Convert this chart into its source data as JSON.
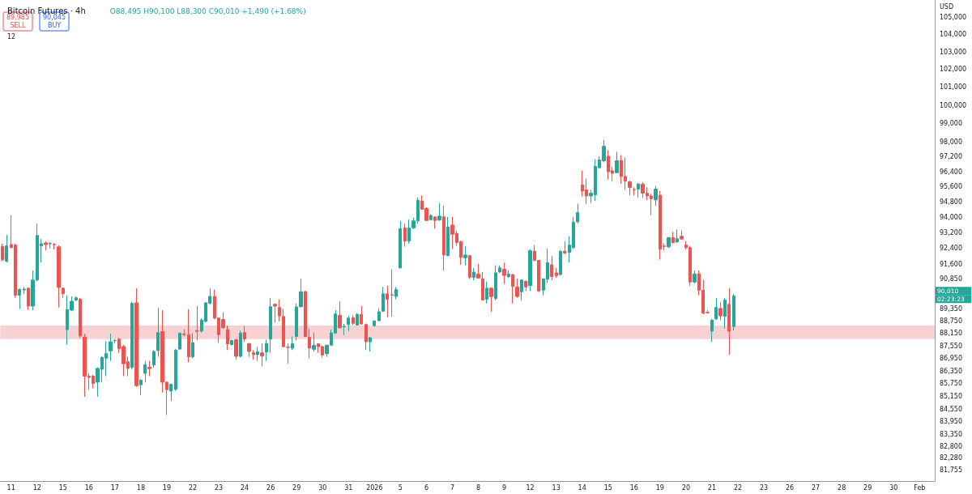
{
  "chart_data": {
    "type": "candlestick",
    "title": "Bitcoin Futures · 4h",
    "subtitle": "O88,495 H90,100 L88,300 C90,010 +1,490 (+1.68%)",
    "ylabel": "USD",
    "annotations": [
      "89,985",
      "SELL",
      "90,045",
      "BUY",
      "12",
      "90,010",
      "02:23:23"
    ],
    "log": true,
    "ylim": [
      81250,
      106000
    ],
    "yticks": [
      {
        "value": 81755,
        "label": "81,755"
      },
      {
        "value": 82280,
        "label": "82,280"
      },
      {
        "value": 82800,
        "label": "82,800"
      },
      {
        "value": 83350,
        "label": "83,350"
      },
      {
        "value": 83950,
        "label": "83,950"
      },
      {
        "value": 84550,
        "label": "84,550"
      },
      {
        "value": 85150,
        "label": "85,150"
      },
      {
        "value": 85750,
        "label": "85,750"
      },
      {
        "value": 86350,
        "label": "86,350"
      },
      {
        "value": 86950,
        "label": "86,950"
      },
      {
        "value": 87550,
        "label": "87,550"
      },
      {
        "value": 88150,
        "label": "88,150"
      },
      {
        "value": 88750,
        "label": "88,750"
      },
      {
        "value": 89350,
        "label": "89,350"
      },
      {
        "value": 90850,
        "label": "90,850"
      },
      {
        "value": 91600,
        "label": "91,600"
      },
      {
        "value": 92400,
        "label": "92,400"
      },
      {
        "value": 93200,
        "label": "93,200"
      },
      {
        "value": 94000,
        "label": "94,000"
      },
      {
        "value": 94800,
        "label": "94,800"
      },
      {
        "value": 95600,
        "label": "95,600"
      },
      {
        "value": 96400,
        "label": "96,400"
      },
      {
        "value": 97200,
        "label": "97,200"
      },
      {
        "value": 98000,
        "label": "98,000"
      },
      {
        "value": 99000,
        "label": "99,000"
      },
      {
        "value": 100000,
        "label": "100,000"
      },
      {
        "value": 101000,
        "label": "101,000"
      },
      {
        "value": 102000,
        "label": "102,000"
      },
      {
        "value": 103000,
        "label": "103,000"
      },
      {
        "value": 104000,
        "label": "104,000"
      },
      {
        "value": 105000,
        "label": "105,000"
      }
    ],
    "bands": [
      {
        "axis": "y",
        "from": 87880,
        "to": 88540,
        "color": "#f4b4b6"
      }
    ],
    "categories": [
      null,
      null,
      "11",
      null,
      null,
      null,
      null,
      null,
      "12",
      null,
      null,
      null,
      null,
      null,
      "15",
      null,
      null,
      null,
      null,
      null,
      "16",
      null,
      null,
      null,
      null,
      null,
      "17",
      null,
      null,
      null,
      null,
      null,
      "18",
      null,
      null,
      null,
      null,
      null,
      "19",
      null,
      null,
      null,
      null,
      null,
      "22",
      null,
      null,
      null,
      null,
      null,
      "23",
      null,
      null,
      null,
      null,
      null,
      "24",
      null,
      null,
      null,
      null,
      null,
      "26",
      null,
      null,
      null,
      null,
      null,
      "29",
      null,
      null,
      null,
      null,
      null,
      "30",
      null,
      null,
      null,
      null,
      null,
      "31",
      null,
      null,
      null,
      null,
      null,
      "2026",
      null,
      null,
      null,
      null,
      null,
      "5",
      null,
      null,
      null,
      null,
      null,
      "6",
      null,
      null,
      null,
      null,
      null,
      "7",
      null,
      null,
      null,
      null,
      null,
      "8",
      null,
      null,
      null,
      null,
      null,
      "9",
      null,
      null,
      null,
      null,
      null,
      "12",
      null,
      null,
      null,
      null,
      null,
      "13",
      null,
      null,
      null,
      null,
      null,
      "14",
      null,
      null,
      null,
      null,
      null,
      "15",
      null,
      null,
      null,
      null,
      null,
      "16",
      null,
      null,
      null,
      null,
      null,
      "19",
      null,
      null,
      null,
      null,
      null,
      "20",
      null,
      null,
      null,
      null,
      null,
      "21",
      null,
      null,
      null,
      null,
      null,
      "22",
      null,
      null,
      null,
      null,
      null,
      "23",
      null,
      null,
      null,
      null,
      null,
      "26",
      null,
      null,
      null,
      null,
      null,
      "27",
      null,
      null,
      null,
      null,
      null,
      "28",
      null,
      null,
      null,
      null,
      null,
      "29",
      null,
      null,
      null,
      null,
      null,
      "30",
      null,
      null,
      null,
      null,
      null,
      "Feb",
      null,
      null,
      null
    ],
    "ohlc": [
      [
        92500,
        92640,
        91750,
        91820
      ],
      [
        91750,
        93100,
        91680,
        92530
      ],
      [
        92600,
        94100,
        92400,
        92440
      ],
      [
        92570,
        92640,
        89910,
        90040
      ],
      [
        90040,
        90390,
        89360,
        90320
      ],
      [
        90300,
        90450,
        90100,
        90340
      ],
      [
        90390,
        90430,
        89300,
        89500
      ],
      [
        89500,
        91270,
        89300,
        90800
      ],
      [
        90800,
        93670,
        90730,
        93060
      ],
      [
        92530,
        92880,
        91680,
        92640
      ],
      [
        92680,
        92760,
        92300,
        92600
      ],
      [
        92640,
        92720,
        92400,
        92650
      ],
      [
        92600,
        92680,
        92350,
        92590
      ],
      [
        92480,
        92560,
        89430,
        90430
      ],
      [
        90390,
        90430,
        89910,
        90110
      ],
      [
        88340,
        90040,
        87615,
        89330
      ],
      [
        89300,
        89980,
        89250,
        89740
      ],
      [
        89800,
        89980,
        89750,
        89910
      ],
      [
        89840,
        89910,
        87945,
        88040
      ],
      [
        87980,
        88140,
        85125,
        86100
      ],
      [
        86100,
        86235,
        85455,
        86040
      ],
      [
        86100,
        86150,
        85520,
        85750
      ],
      [
        85815,
        86520,
        85125,
        86470
      ],
      [
        86430,
        87050,
        85815,
        87000
      ],
      [
        86960,
        87775,
        86100,
        87180
      ],
      [
        87310,
        88150,
        86830,
        87750
      ],
      [
        87800,
        87880,
        87680,
        87815
      ],
      [
        87880,
        87945,
        87220,
        87420
      ],
      [
        87520,
        87600,
        86100,
        86690
      ],
      [
        86790,
        87025,
        86100,
        86470
      ],
      [
        86525,
        89700,
        86430,
        89630
      ],
      [
        89660,
        90390,
        85590,
        85650
      ],
      [
        85690,
        85950,
        85190,
        85910
      ],
      [
        86235,
        86830,
        85800,
        86650
      ],
      [
        86525,
        86830,
        86100,
        86460
      ],
      [
        86630,
        87350,
        86500,
        87285
      ],
      [
        87325,
        89430,
        87025,
        88200
      ],
      [
        88250,
        89300,
        85320,
        85815
      ],
      [
        85815,
        85850,
        84270,
        85455
      ],
      [
        85390,
        85750,
        84925,
        85710
      ],
      [
        85480,
        87400,
        85400,
        87350
      ],
      [
        87400,
        88200,
        87350,
        88170
      ],
      [
        88140,
        88360,
        88020,
        88100
      ],
      [
        88100,
        89340,
        86760,
        87025
      ],
      [
        87025,
        88170,
        86950,
        87710
      ],
      [
        88300,
        89500,
        87815,
        88260
      ],
      [
        88270,
        88900,
        88200,
        88810
      ],
      [
        88750,
        89700,
        88700,
        89660
      ],
      [
        89630,
        90390,
        89600,
        89980
      ],
      [
        89980,
        90320,
        88850,
        88910
      ],
      [
        88910,
        88950,
        87710,
        88100
      ],
      [
        88840,
        89200,
        88400,
        88430
      ],
      [
        88340,
        88540,
        87350,
        87655
      ],
      [
        87615,
        87850,
        87580,
        87815
      ],
      [
        87855,
        87900,
        86890,
        87050
      ],
      [
        87050,
        88300,
        86990,
        88170
      ],
      [
        88200,
        88540,
        87750,
        87880
      ],
      [
        87655,
        87700,
        87025,
        87285
      ],
      [
        87220,
        87350,
        86890,
        87130
      ],
      [
        87130,
        87500,
        86830,
        87260
      ],
      [
        87220,
        87680,
        86560,
        87060
      ],
      [
        87260,
        87855,
        86830,
        87655
      ],
      [
        87880,
        89910,
        87220,
        89470
      ],
      [
        89590,
        89630,
        88680,
        89500
      ],
      [
        89430,
        89840,
        88750,
        89020
      ],
      [
        88990,
        89360,
        87480,
        87520
      ],
      [
        87500,
        87680,
        86690,
        87480
      ],
      [
        87440,
        88010,
        87350,
        87655
      ],
      [
        88010,
        89630,
        87815,
        89460
      ],
      [
        89470,
        90860,
        89430,
        90210
      ],
      [
        90220,
        90260,
        87980,
        88010
      ],
      [
        87970,
        88390,
        86960,
        87445
      ],
      [
        87390,
        88210,
        87285,
        87575
      ],
      [
        87655,
        87680,
        87220,
        87520
      ],
      [
        87520,
        87560,
        86990,
        87115
      ],
      [
        87180,
        87600,
        87025,
        87590
      ],
      [
        87590,
        88340,
        87560,
        88180
      ],
      [
        88180,
        89300,
        88150,
        89110
      ],
      [
        89050,
        89740,
        88410,
        88430
      ],
      [
        88480,
        88620,
        88080,
        88500
      ],
      [
        88590,
        89020,
        88270,
        88910
      ],
      [
        88930,
        89050,
        88570,
        88650
      ],
      [
        88570,
        89150,
        88540,
        89090
      ],
      [
        89090,
        89500,
        88590,
        88620
      ],
      [
        88590,
        88640,
        87350,
        87750
      ],
      [
        87750,
        87990,
        87285,
        87945
      ],
      [
        88540,
        88800,
        88480,
        88770
      ],
      [
        88780,
        89390,
        88750,
        89220
      ],
      [
        89250,
        90450,
        89220,
        90110
      ],
      [
        90110,
        90520,
        88950,
        89840
      ],
      [
        90060,
        91340,
        88980,
        90040
      ],
      [
        89980,
        90450,
        89840,
        90320
      ],
      [
        91410,
        93815,
        91380,
        93415
      ],
      [
        93460,
        93670,
        92490,
        92770
      ],
      [
        92770,
        93880,
        92640,
        93460
      ],
      [
        93460,
        93990,
        93390,
        93815
      ],
      [
        93815,
        95040,
        93670,
        94890
      ],
      [
        94850,
        95140,
        94390,
        94420
      ],
      [
        94460,
        94530,
        93815,
        93840
      ],
      [
        93880,
        94170,
        93840,
        94100
      ],
      [
        94020,
        94060,
        93410,
        93840
      ],
      [
        93860,
        94750,
        93815,
        94060
      ],
      [
        94030,
        94600,
        91280,
        92070
      ],
      [
        92030,
        94030,
        92000,
        93500
      ],
      [
        93600,
        94030,
        92370,
        93130
      ],
      [
        93170,
        93300,
        92530,
        92700
      ],
      [
        92750,
        92800,
        91570,
        91940
      ],
      [
        91920,
        92500,
        91540,
        92060
      ],
      [
        92030,
        92060,
        90840,
        90930
      ],
      [
        90930,
        91410,
        90790,
        91200
      ],
      [
        91100,
        91610,
        90870,
        90900
      ],
      [
        90860,
        91200,
        89780,
        89800
      ],
      [
        89840,
        90730,
        89630,
        90390
      ],
      [
        90390,
        90430,
        89220,
        89970
      ],
      [
        89880,
        91540,
        89780,
        91160
      ],
      [
        91200,
        91540,
        91160,
        91410
      ],
      [
        91340,
        91680,
        90620,
        91030
      ],
      [
        90970,
        91290,
        90920,
        91110
      ],
      [
        91070,
        91100,
        89630,
        90480
      ],
      [
        90450,
        90860,
        89910,
        89980
      ],
      [
        90210,
        90830,
        89770,
        90800
      ],
      [
        90730,
        90780,
        90250,
        90450
      ],
      [
        90520,
        92350,
        90250,
        92280
      ],
      [
        92260,
        92570,
        91750,
        91790
      ],
      [
        91790,
        91800,
        90200,
        90250
      ],
      [
        90290,
        90870,
        90040,
        90860
      ],
      [
        90840,
        92400,
        90650,
        91680
      ],
      [
        91570,
        92020,
        90790,
        90970
      ],
      [
        91160,
        91410,
        90910,
        91020
      ],
      [
        91080,
        92320,
        91020,
        92250
      ],
      [
        92260,
        92770,
        92100,
        92170
      ],
      [
        92200,
        93030,
        91680,
        92570
      ],
      [
        92440,
        94030,
        92370,
        93750
      ],
      [
        93770,
        94720,
        93670,
        94250
      ],
      [
        95700,
        96470,
        95080,
        95370
      ],
      [
        95440,
        96030,
        94680,
        95120
      ],
      [
        95120,
        95440,
        94750,
        95260
      ],
      [
        95180,
        97065,
        94855,
        96685
      ],
      [
        96615,
        97230,
        96565,
        97035
      ],
      [
        96985,
        98100,
        96900,
        97760
      ],
      [
        97230,
        97560,
        95980,
        96400
      ],
      [
        96450,
        96650,
        95900,
        96320
      ],
      [
        96350,
        97470,
        96320,
        96985
      ],
      [
        97000,
        97290,
        95760,
        96150
      ],
      [
        96150,
        97150,
        95440,
        95900
      ],
      [
        95860,
        95930,
        95150,
        95570
      ],
      [
        95450,
        95570,
        95150,
        95440
      ],
      [
        95480,
        95800,
        95020,
        95750
      ],
      [
        95750,
        95840,
        95020,
        95260
      ],
      [
        95260,
        95570,
        94900,
        95120
      ],
      [
        95120,
        95230,
        94120,
        94970
      ],
      [
        94910,
        95640,
        94600,
        95480
      ],
      [
        95160,
        95390,
        91830,
        92360
      ],
      [
        92520,
        92650,
        92300,
        92500
      ],
      [
        92480,
        92990,
        92400,
        92950
      ],
      [
        92950,
        93240,
        92650,
        92700
      ],
      [
        92730,
        93380,
        92680,
        92900
      ],
      [
        93020,
        93320,
        92860,
        92880
      ],
      [
        92570,
        92770,
        92350,
        92440
      ],
      [
        92440,
        92520,
        90500,
        90700
      ],
      [
        90700,
        91280,
        90620,
        91110
      ],
      [
        91110,
        91280,
        90040,
        90290
      ],
      [
        90290,
        90800,
        89100,
        89160
      ],
      [
        89190,
        89300,
        89150,
        89170
      ],
      [
        88270,
        88850,
        87750,
        88810
      ],
      [
        88880,
        89910,
        88810,
        89430
      ],
      [
        89380,
        89690,
        88810,
        89020
      ],
      [
        88990,
        89910,
        88390,
        89800
      ],
      [
        89590,
        90390,
        87120,
        88270
      ],
      [
        88495,
        90100,
        88300,
        90010
      ],
      null,
      null,
      null,
      null,
      null,
      null,
      null,
      null,
      null,
      null,
      null,
      null,
      null,
      null,
      null,
      null,
      null,
      null,
      null,
      null,
      null,
      null,
      null,
      null,
      null,
      null,
      null,
      null,
      null,
      null,
      null,
      null,
      null,
      null,
      null,
      null,
      null,
      null,
      null,
      null,
      null,
      null,
      null,
      null,
      null,
      null
    ]
  }
}
